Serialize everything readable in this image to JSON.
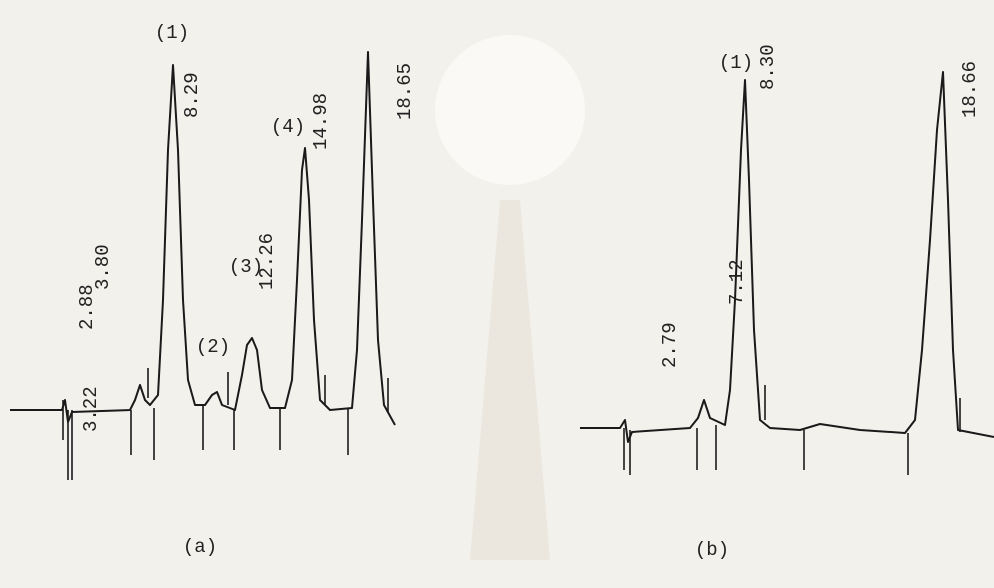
{
  "panel_a": {
    "caption": "(a)",
    "labels": [
      "(1)",
      "8.29",
      "(4)",
      "14.98",
      "18.65",
      "2.88",
      "3.80",
      "(2)",
      "(3)",
      "12.26",
      "3.22"
    ]
  },
  "panel_b": {
    "caption": "(b)",
    "labels": [
      "(1)",
      "8.30",
      "18.66",
      "2.79",
      "7.12"
    ]
  }
}
